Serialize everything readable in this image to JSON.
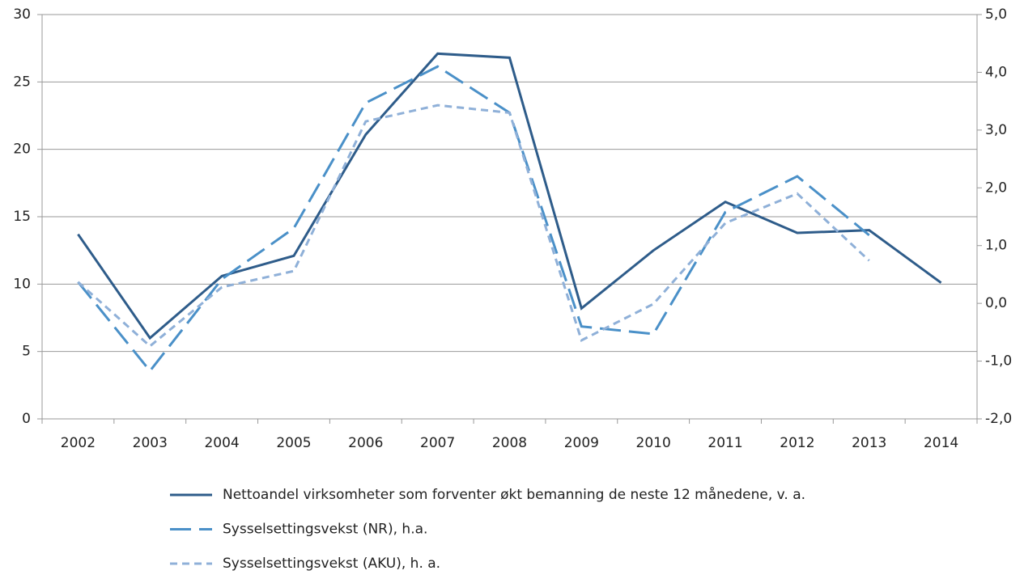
{
  "chart_data": {
    "type": "line",
    "categories": [
      "2002",
      "2003",
      "2004",
      "2005",
      "2006",
      "2007",
      "2008",
      "2009",
      "2010",
      "2011",
      "2012",
      "2013",
      "2014"
    ],
    "series": [
      {
        "name": "Nettoandel virksomheter som forventer økt bemanning de neste 12 månedene, v. a.",
        "color": "#2e5c8a",
        "style": "solid",
        "axis": "y",
        "values": [
          13.7,
          6.0,
          10.6,
          12.1,
          21.1,
          27.1,
          26.8,
          8.2,
          12.5,
          16.1,
          13.8,
          14.0,
          10.1
        ]
      },
      {
        "name": "Sysselsettingsvekst (NR), h.a.",
        "color": "#4a90c8",
        "style": "dashed",
        "axis": "y2",
        "values": [
          0.37,
          -1.17,
          0.42,
          1.3,
          3.47,
          4.1,
          3.3,
          -0.4,
          -0.53,
          1.58,
          2.2,
          1.18,
          null
        ]
      },
      {
        "name": "Sysselsettingsvekst (AKU), h. a.",
        "color": "#8fb0d8",
        "style": "dotted",
        "axis": "y2",
        "values": [
          0.37,
          -0.74,
          0.28,
          0.56,
          3.15,
          3.43,
          3.3,
          -0.64,
          -0.01,
          1.39,
          1.9,
          0.74,
          null
        ]
      }
    ],
    "ylim": [
      0,
      30
    ],
    "yticks": [
      0,
      5,
      10,
      15,
      20,
      25,
      30
    ],
    "y2lim": [
      -2,
      5
    ],
    "y2ticks": [
      {
        "value": -2,
        "label": "-2,0"
      },
      {
        "value": -1,
        "label": "-1,0"
      },
      {
        "value": 0,
        "label": "0,0"
      },
      {
        "value": 1,
        "label": "1,0"
      },
      {
        "value": 2,
        "label": "2,0"
      },
      {
        "value": 3,
        "label": "3,0"
      },
      {
        "value": 4,
        "label": "4,0"
      },
      {
        "value": 5,
        "label": "5,0"
      }
    ],
    "grid": true
  }
}
